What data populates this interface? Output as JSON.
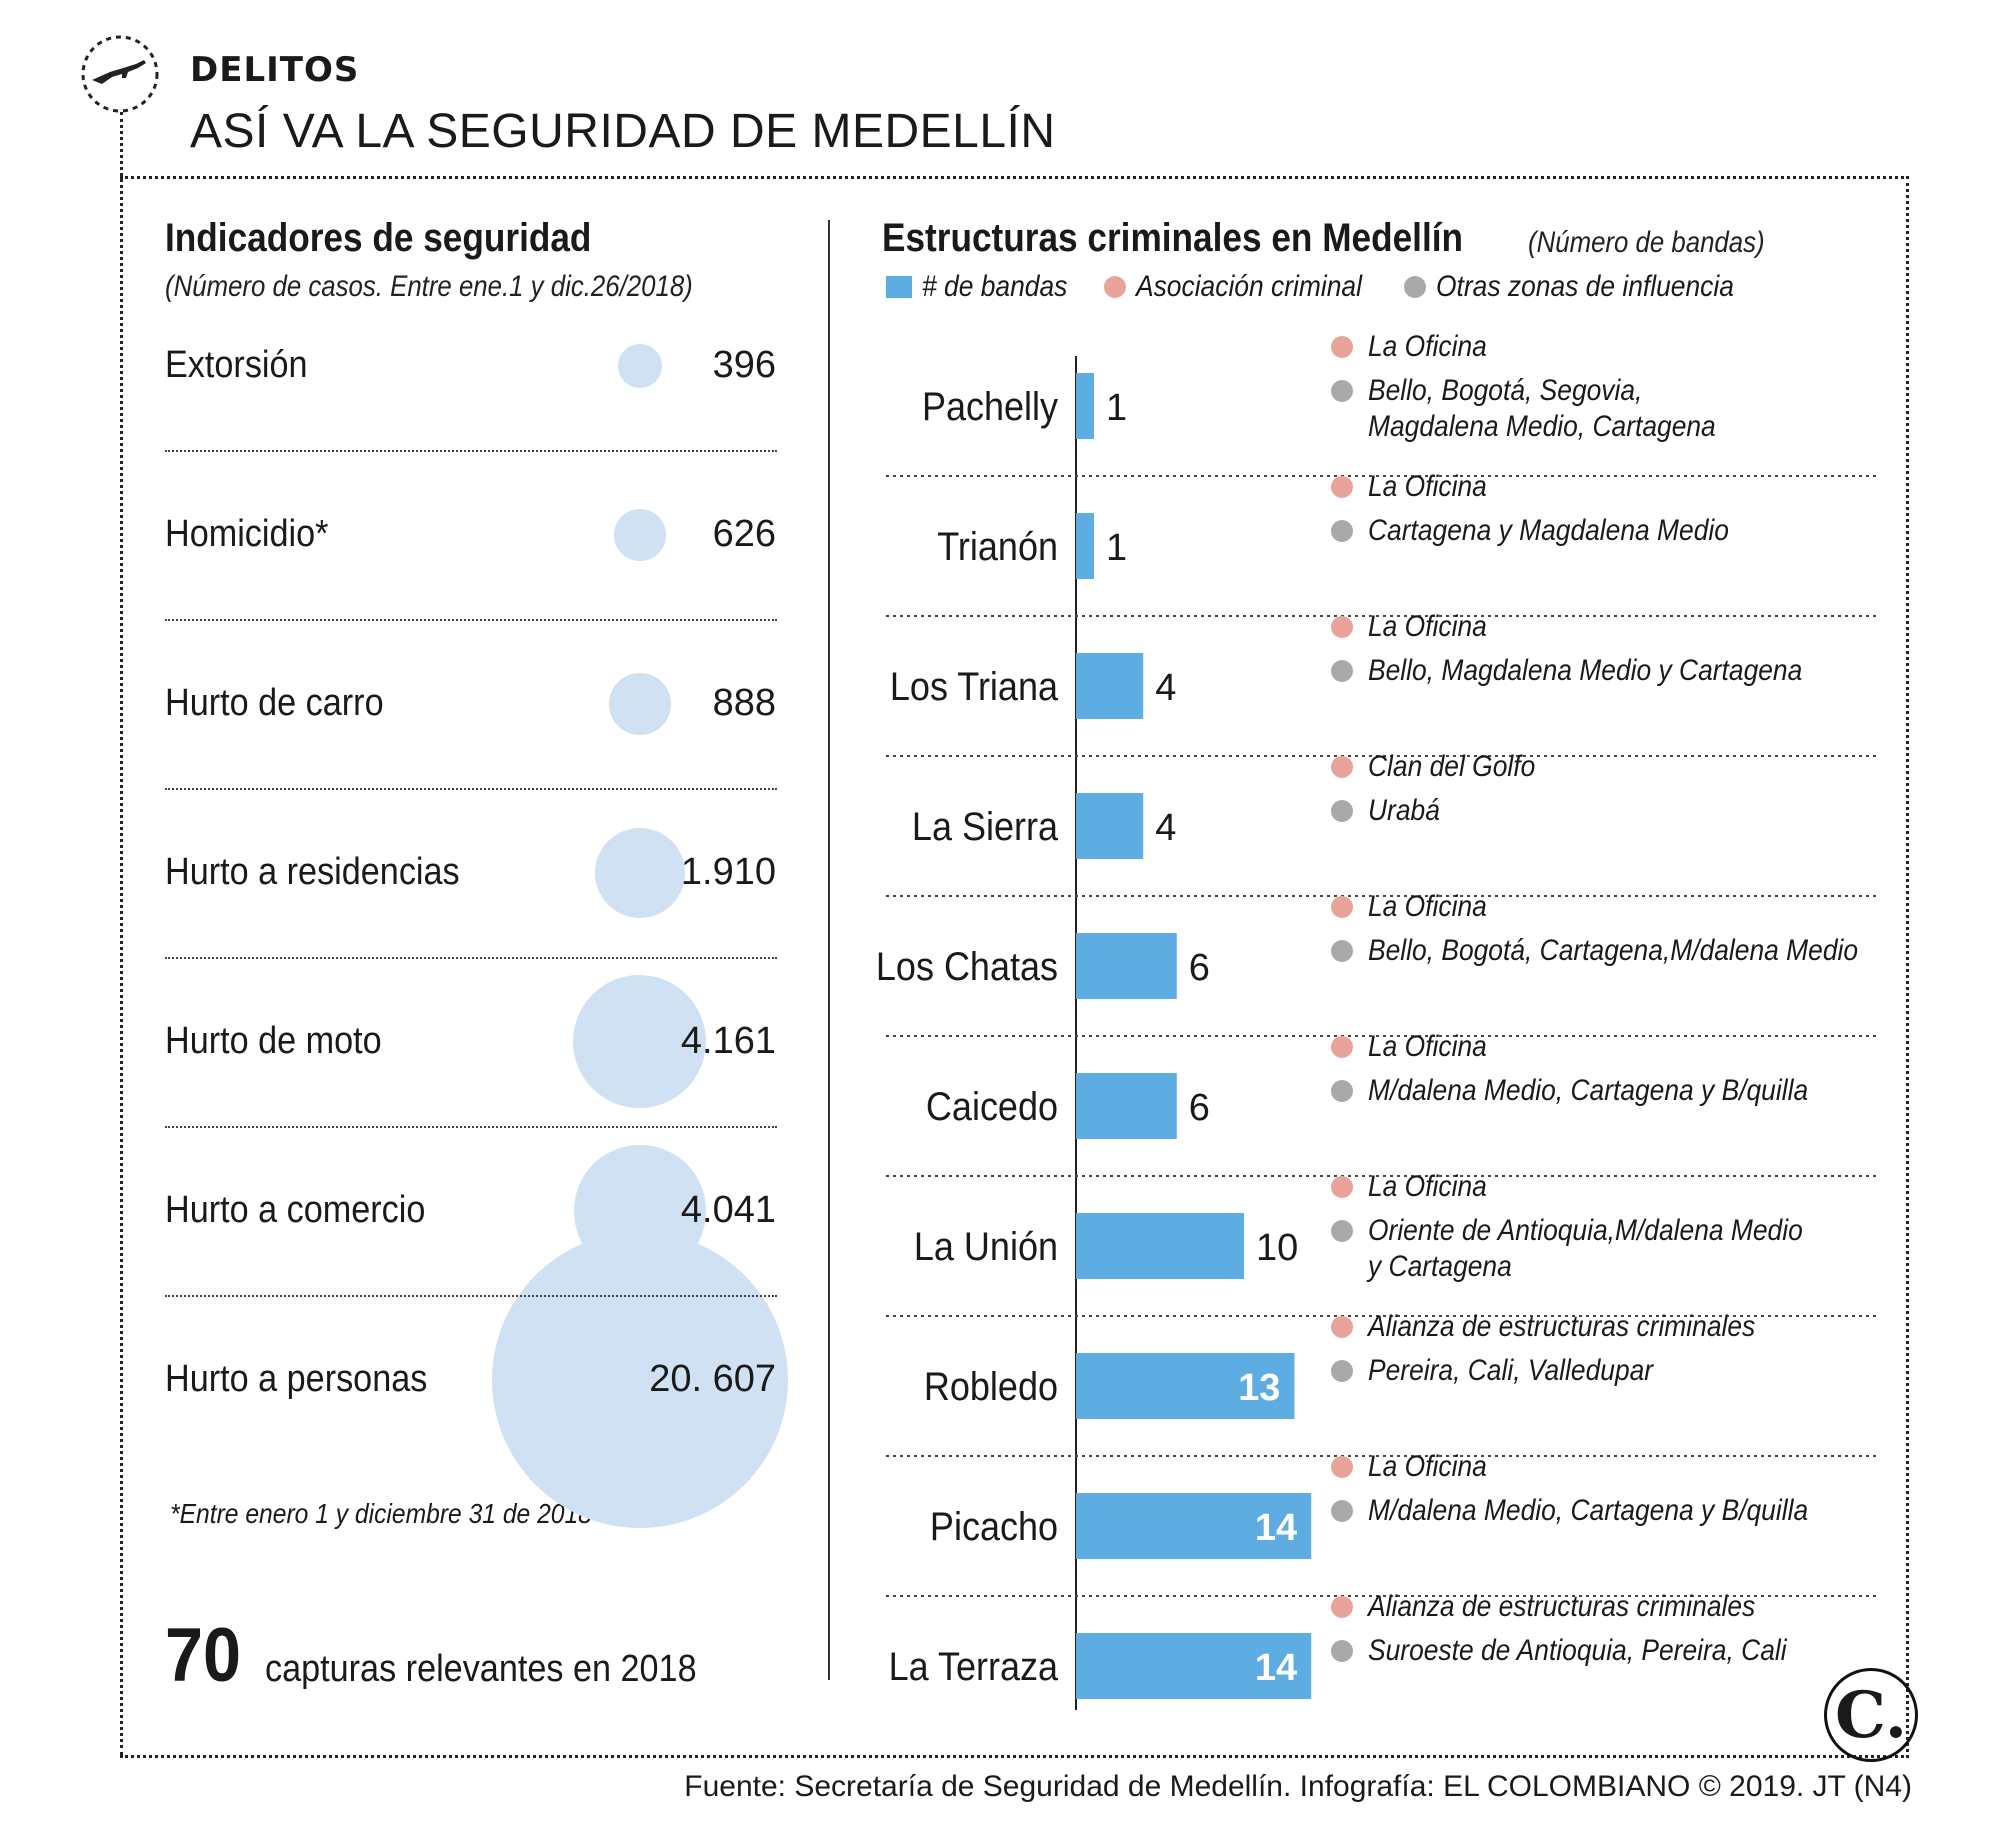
{
  "header": {
    "tag": "DELITOS",
    "title": "ASÍ VA LA SEGURIDAD DE MEDELLÍN",
    "emblem_icon": "rifle-icon"
  },
  "left": {
    "title": "Indicadores de seguridad",
    "subtitle": "(Número de casos. Entre ene.1 y dic.26/2018)",
    "footnote": "*Entre enero 1 y diciembre 31 de 2018",
    "captures_number": "70",
    "captures_text": "capturas relevantes en 2018"
  },
  "right": {
    "title": "Estructuras criminales en Medellín",
    "title_note": "(Número de bandas)",
    "legend": {
      "bandas": "# de bandas",
      "asociacion": "Asociación criminal",
      "otras": "Otras zonas de influencia"
    }
  },
  "source": "Fuente: Secretaría de Seguridad de Medellín. Infografía: EL COLOMBIANO © 2019. JT (N4)",
  "logo": "C.",
  "colors": {
    "bar": "#5dade2",
    "bubble": "#cfe1f3",
    "asociacion_dot": "#e8a39b",
    "otras_dot": "#a9a9a9"
  },
  "chart_data": [
    {
      "type": "bubble",
      "title": "Indicadores de seguridad",
      "categories": [
        "Extorsión",
        "Homicidio*",
        "Hurto de carro",
        "Hurto a residencias",
        "Hurto de moto",
        "Hurto a comercio",
        "Hurto a personas"
      ],
      "values": [
        396,
        626,
        888,
        1910,
        4161,
        4041,
        20607
      ],
      "value_labels": [
        "396",
        "626",
        "888",
        "1.910",
        "4.161",
        "4.041",
        "20. 607"
      ]
    },
    {
      "type": "bar",
      "title": "Estructuras criminales en Medellín",
      "categories": [
        "Pachelly",
        "Trianón",
        "Los Triana",
        "La Sierra",
        "Los Chatas",
        "Caicedo",
        "La Unión",
        "Robledo",
        "Picacho",
        "La Terraza"
      ],
      "series": [
        {
          "name": "# de bandas",
          "values": [
            1,
            1,
            4,
            4,
            6,
            6,
            10,
            13,
            14,
            14
          ]
        }
      ],
      "xlim": [
        0,
        14
      ],
      "asociacion": [
        "La Oficina",
        "La Oficina",
        "La Oficina",
        "Clan del Golfo",
        "La Oficina",
        "La Oficina",
        "La Oficina",
        "Alianza de estructuras criminales",
        "La Oficina",
        "Alianza de estructuras criminales"
      ],
      "zonas": [
        [
          "Bello, Bogotá, Segovia,",
          "Magdalena Medio, Cartagena"
        ],
        [
          "Cartagena y Magdalena Medio"
        ],
        [
          "Bello, Magdalena Medio y Cartagena"
        ],
        [
          "Urabá"
        ],
        [
          "Bello, Bogotá, Cartagena,M/dalena Medio"
        ],
        [
          "M/dalena Medio, Cartagena y B/quilla"
        ],
        [
          "Oriente de Antioquia,M/dalena Medio",
          "y Cartagena"
        ],
        [
          "Pereira, Cali, Valledupar"
        ],
        [
          "M/dalena Medio, Cartagena y B/quilla"
        ],
        [
          "Suroeste de Antioquia, Pereira, Cali"
        ]
      ]
    }
  ]
}
